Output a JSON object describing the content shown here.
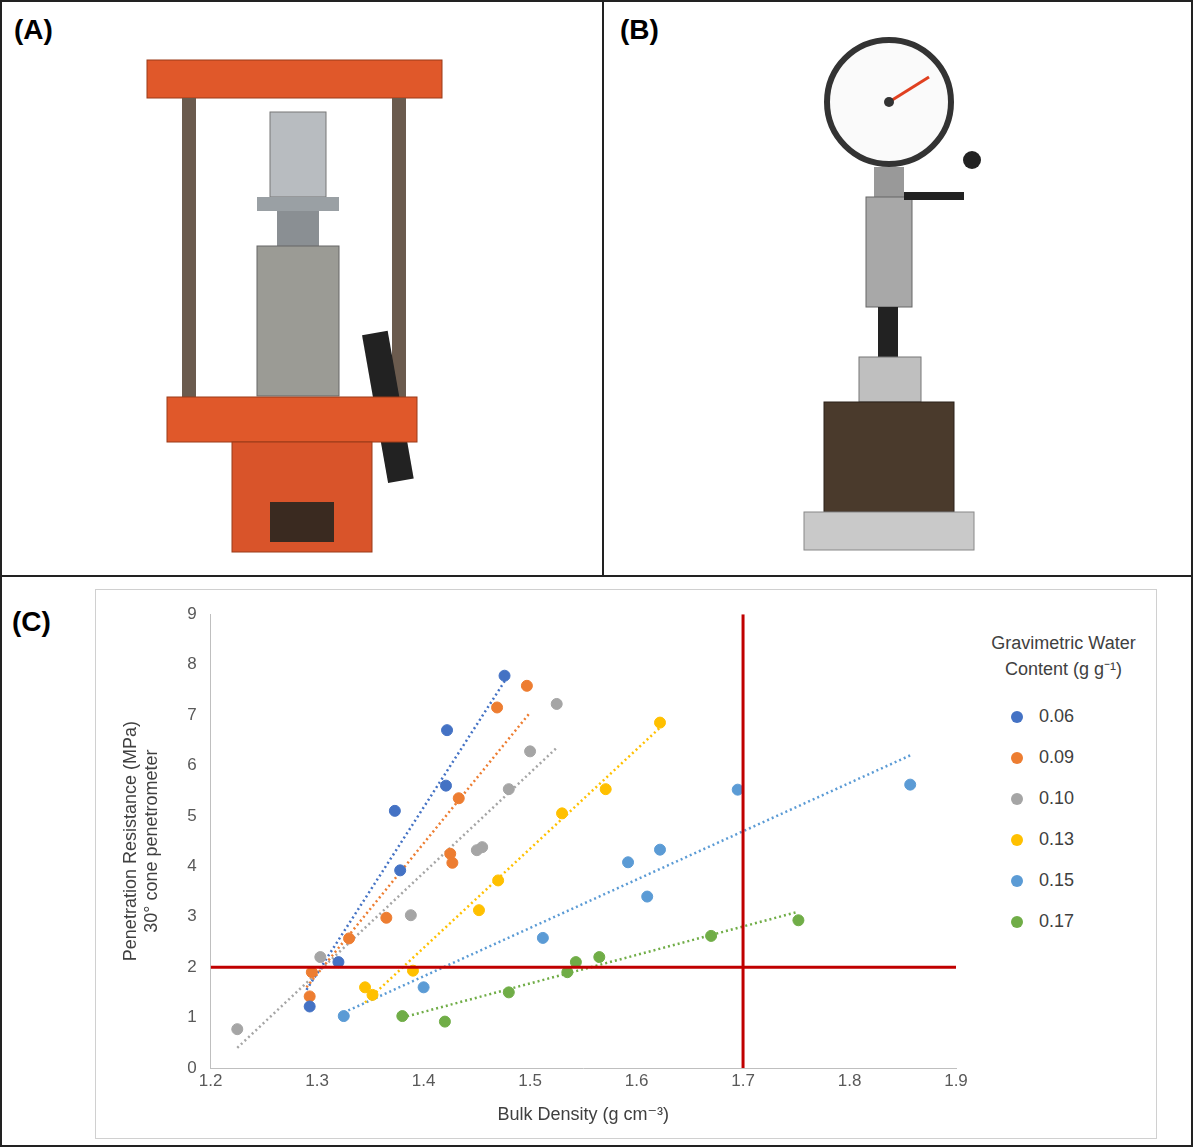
{
  "panel_labels": [
    "(A)",
    "(B)",
    "(C)"
  ],
  "chart_data": {
    "type": "scatter",
    "x_label": "Bulk Density (g cm⁻³)",
    "y_label": [
      "Penetration Resistance (MPa)",
      "30° cone penetrometer"
    ],
    "legend_title": "Gravimetric Water Content (g g⁻¹)",
    "legend": "right",
    "grid": false,
    "marker": "circle",
    "xlim": [
      1.2,
      1.9
    ],
    "xticks": [
      1.2,
      1.3,
      1.4,
      1.5,
      1.6,
      1.7,
      1.8,
      1.9
    ],
    "ylim": [
      0,
      9
    ],
    "yticks": [
      0,
      1,
      2,
      3,
      4,
      5,
      6,
      7,
      8,
      9
    ],
    "reference_lines": [
      {
        "axis": "x",
        "value": 1.7,
        "color": "#c00000"
      },
      {
        "axis": "y",
        "value": 2,
        "color": "#c00000"
      }
    ],
    "series": [
      {
        "name": "0.06",
        "color": "#4472c4",
        "x": [
          1.293,
          1.32,
          1.373,
          1.378,
          1.421,
          1.422,
          1.476
        ],
        "values": [
          1.22,
          2.1,
          5.1,
          3.92,
          5.6,
          6.7,
          7.78
        ],
        "trendline": {
          "x": [
            1.29,
            1.48
          ],
          "values": [
            1.55,
            7.8
          ],
          "line_style": "dotted"
        }
      },
      {
        "name": "0.09",
        "color": "#ed7d31",
        "x": [
          1.293,
          1.295,
          1.33,
          1.365,
          1.425,
          1.427,
          1.433,
          1.469,
          1.497
        ],
        "values": [
          1.42,
          1.9,
          2.57,
          2.98,
          4.25,
          4.07,
          5.35,
          7.15,
          7.58
        ],
        "trendline": {
          "x": [
            1.29,
            1.5
          ],
          "values": [
            1.6,
            7.05
          ],
          "line_style": "dotted"
        }
      },
      {
        "name": "0.10",
        "color": "#a5a5a5",
        "x": [
          1.225,
          1.303,
          1.388,
          1.45,
          1.455,
          1.48,
          1.5,
          1.525
        ],
        "values": [
          0.77,
          2.2,
          3.03,
          4.32,
          4.38,
          5.53,
          6.28,
          7.22
        ],
        "trendline": {
          "x": [
            1.225,
            1.525
          ],
          "values": [
            0.4,
            6.35
          ],
          "line_style": "dotted"
        }
      },
      {
        "name": "0.13",
        "color": "#ffc000",
        "x": [
          1.345,
          1.352,
          1.39,
          1.452,
          1.47,
          1.53,
          1.571,
          1.622
        ],
        "values": [
          1.6,
          1.45,
          1.93,
          3.13,
          3.72,
          5.05,
          5.53,
          6.85
        ],
        "trendline": {
          "x": [
            1.345,
            1.622
          ],
          "values": [
            1.3,
            6.75
          ],
          "line_style": "dotted"
        }
      },
      {
        "name": "0.15",
        "color": "#5b9bd5",
        "x": [
          1.325,
          1.4,
          1.512,
          1.592,
          1.61,
          1.622,
          1.695,
          1.857
        ],
        "values": [
          1.03,
          1.6,
          2.58,
          4.08,
          3.4,
          4.33,
          5.52,
          5.62
        ],
        "trendline": {
          "x": [
            1.325,
            1.857
          ],
          "values": [
            1.1,
            6.2
          ],
          "line_style": "dotted"
        }
      },
      {
        "name": "0.17",
        "color": "#70ad47",
        "x": [
          1.38,
          1.42,
          1.48,
          1.535,
          1.543,
          1.565,
          1.67,
          1.752
        ],
        "values": [
          1.03,
          0.92,
          1.5,
          1.9,
          2.1,
          2.2,
          2.62,
          2.93
        ],
        "trendline": {
          "x": [
            1.38,
            1.752
          ],
          "values": [
            1.0,
            3.1
          ],
          "line_style": "dotted"
        }
      }
    ]
  }
}
